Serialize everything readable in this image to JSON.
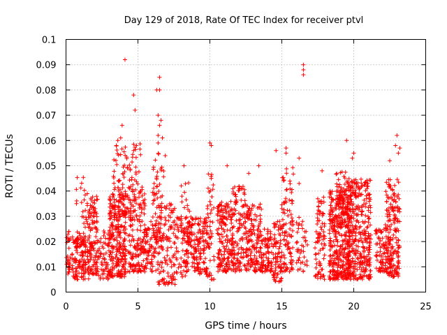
{
  "chart_data": {
    "type": "scatter",
    "title": "Day 129 of 2018, Rate Of TEC Index for receiver ptvl",
    "xlabel": "GPS time / hours",
    "ylabel": "ROTI / TECUs",
    "xlim": [
      0,
      25
    ],
    "ylim": [
      0,
      0.1
    ],
    "x_ticks": [
      0,
      5,
      10,
      15,
      20,
      25
    ],
    "x_tick_labels": [
      "0",
      "5",
      "10",
      "15",
      "20",
      "25"
    ],
    "y_ticks": [
      0,
      0.01,
      0.02,
      0.03,
      0.04,
      0.05,
      0.06,
      0.07,
      0.08,
      0.09,
      0.1
    ],
    "y_tick_labels": [
      "0",
      "0.01",
      "0.02",
      "0.03",
      "0.04",
      "0.05",
      "0.06",
      "0.07",
      "0.08",
      "0.09",
      "0.1"
    ],
    "grid": true,
    "marker": "plus",
    "color": "#ff0000",
    "clusters": [
      {
        "x_range": [
          0.0,
          0.3
        ],
        "y_range": [
          0.007,
          0.024
        ],
        "count": 30
      },
      {
        "x_range": [
          0.4,
          1.6
        ],
        "y_range": [
          0.005,
          0.022
        ],
        "count": 120
      },
      {
        "x_range": [
          0.7,
          1.5
        ],
        "y_range": [
          0.018,
          0.046
        ],
        "count": 40
      },
      {
        "x_range": [
          1.5,
          2.2
        ],
        "y_range": [
          0.007,
          0.038
        ],
        "count": 120
      },
      {
        "x_range": [
          2.2,
          3.0
        ],
        "y_range": [
          0.005,
          0.025
        ],
        "count": 60
      },
      {
        "x_range": [
          3.0,
          4.2
        ],
        "y_range": [
          0.006,
          0.04
        ],
        "count": 260
      },
      {
        "x_range": [
          3.2,
          4.3
        ],
        "y_range": [
          0.03,
          0.058
        ],
        "count": 70
      },
      {
        "x_range": [
          4.3,
          5.5
        ],
        "y_range": [
          0.008,
          0.042
        ],
        "count": 180
      },
      {
        "x_range": [
          4.4,
          5.2
        ],
        "y_range": [
          0.04,
          0.06
        ],
        "count": 25
      },
      {
        "x_range": [
          5.5,
          6.4
        ],
        "y_range": [
          0.008,
          0.028
        ],
        "count": 80
      },
      {
        "x_range": [
          6.0,
          6.8
        ],
        "y_range": [
          0.02,
          0.055
        ],
        "count": 60
      },
      {
        "x_range": [
          6.4,
          7.6
        ],
        "y_range": [
          0.003,
          0.035
        ],
        "count": 120
      },
      {
        "x_range": [
          7.6,
          8.4
        ],
        "y_range": [
          0.006,
          0.03
        ],
        "count": 60
      },
      {
        "x_range": [
          8.0,
          8.6
        ],
        "y_range": [
          0.018,
          0.047
        ],
        "count": 30
      },
      {
        "x_range": [
          8.4,
          9.8
        ],
        "y_range": [
          0.007,
          0.03
        ],
        "count": 160
      },
      {
        "x_range": [
          9.8,
          10.3
        ],
        "y_range": [
          0.005,
          0.047
        ],
        "count": 50
      },
      {
        "x_range": [
          10.5,
          11.6
        ],
        "y_range": [
          0.008,
          0.036
        ],
        "count": 170
      },
      {
        "x_range": [
          11.5,
          12.5
        ],
        "y_range": [
          0.008,
          0.042
        ],
        "count": 130
      },
      {
        "x_range": [
          12.5,
          13.6
        ],
        "y_range": [
          0.008,
          0.035
        ],
        "count": 150
      },
      {
        "x_range": [
          13.6,
          14.3
        ],
        "y_range": [
          0.008,
          0.025
        ],
        "count": 80
      },
      {
        "x_range": [
          14.4,
          15.0
        ],
        "y_range": [
          0.004,
          0.028
        ],
        "count": 80
      },
      {
        "x_range": [
          15.0,
          15.8
        ],
        "y_range": [
          0.008,
          0.05
        ],
        "count": 100
      },
      {
        "x_range": [
          16.0,
          16.8
        ],
        "y_range": [
          0.008,
          0.03
        ],
        "count": 40
      },
      {
        "x_range": [
          17.3,
          18.0
        ],
        "y_range": [
          0.005,
          0.038
        ],
        "count": 80
      },
      {
        "x_range": [
          18.3,
          19.8
        ],
        "y_range": [
          0.005,
          0.04
        ],
        "count": 380
      },
      {
        "x_range": [
          18.7,
          19.6
        ],
        "y_range": [
          0.03,
          0.048
        ],
        "count": 60
      },
      {
        "x_range": [
          19.6,
          21.2
        ],
        "y_range": [
          0.005,
          0.045
        ],
        "count": 340
      },
      {
        "x_range": [
          21.5,
          22.2
        ],
        "y_range": [
          0.008,
          0.025
        ],
        "count": 60
      },
      {
        "x_range": [
          22.2,
          23.2
        ],
        "y_range": [
          0.006,
          0.045
        ],
        "count": 200
      }
    ],
    "points": [
      [
        4.1,
        0.092
      ],
      [
        16.5,
        0.09
      ],
      [
        16.5,
        0.088
      ],
      [
        16.5,
        0.086
      ],
      [
        6.5,
        0.085
      ],
      [
        6.5,
        0.08
      ],
      [
        6.3,
        0.08
      ],
      [
        4.7,
        0.078
      ],
      [
        4.8,
        0.072
      ],
      [
        6.4,
        0.07
      ],
      [
        6.6,
        0.068
      ],
      [
        6.5,
        0.066
      ],
      [
        3.9,
        0.066
      ],
      [
        6.4,
        0.062
      ],
      [
        6.7,
        0.061
      ],
      [
        23.0,
        0.062
      ],
      [
        6.4,
        0.059
      ],
      [
        10.0,
        0.059
      ],
      [
        10.1,
        0.058
      ],
      [
        3.8,
        0.061
      ],
      [
        19.5,
        0.06
      ],
      [
        22.9,
        0.058
      ],
      [
        15.3,
        0.057
      ],
      [
        15.3,
        0.055
      ],
      [
        14.6,
        0.056
      ],
      [
        4.7,
        0.056
      ],
      [
        4.9,
        0.058
      ],
      [
        20.0,
        0.055
      ],
      [
        19.9,
        0.053
      ],
      [
        6.9,
        0.054
      ],
      [
        16.2,
        0.053
      ],
      [
        16.2,
        0.043
      ],
      [
        8.2,
        0.05
      ],
      [
        11.2,
        0.05
      ],
      [
        13.4,
        0.05
      ],
      [
        17.8,
        0.048
      ],
      [
        22.5,
        0.052
      ],
      [
        23.2,
        0.057
      ],
      [
        23.1,
        0.055
      ],
      [
        3.5,
        0.058
      ],
      [
        3.6,
        0.06
      ],
      [
        10.1,
        0.045
      ],
      [
        12.7,
        0.047
      ],
      [
        16.5,
        0.018
      ],
      [
        0.2,
        0.024
      ],
      [
        7.0,
        0.004
      ],
      [
        6.9,
        0.003
      ]
    ]
  }
}
